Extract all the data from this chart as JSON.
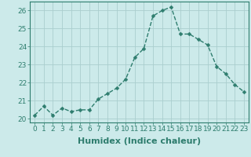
{
  "x": [
    0,
    1,
    2,
    3,
    4,
    5,
    6,
    7,
    8,
    9,
    10,
    11,
    12,
    13,
    14,
    15,
    16,
    17,
    18,
    19,
    20,
    21,
    22,
    23
  ],
  "y": [
    20.2,
    20.7,
    20.2,
    20.6,
    20.4,
    20.5,
    20.5,
    21.1,
    21.4,
    21.7,
    22.2,
    23.4,
    23.9,
    25.7,
    26.0,
    26.2,
    24.7,
    24.7,
    24.4,
    24.1,
    22.9,
    22.5,
    21.9,
    21.5
  ],
  "line_color": "#2e7d6e",
  "marker": "D",
  "marker_size": 2.5,
  "linewidth": 1.0,
  "bg_color": "#cceaea",
  "grid_color_major": "#aacece",
  "grid_color_minor": "#bbd8d8",
  "xlabel": "Humidex (Indice chaleur)",
  "ylim": [
    19.8,
    26.5
  ],
  "xlim": [
    -0.5,
    23.5
  ],
  "yticks": [
    20,
    21,
    22,
    23,
    24,
    25,
    26
  ],
  "xticks": [
    0,
    1,
    2,
    3,
    4,
    5,
    6,
    7,
    8,
    9,
    10,
    11,
    12,
    13,
    14,
    15,
    16,
    17,
    18,
    19,
    20,
    21,
    22,
    23
  ],
  "tick_fontsize": 6.5,
  "xlabel_fontsize": 8,
  "spine_color": "#2e7d6e"
}
